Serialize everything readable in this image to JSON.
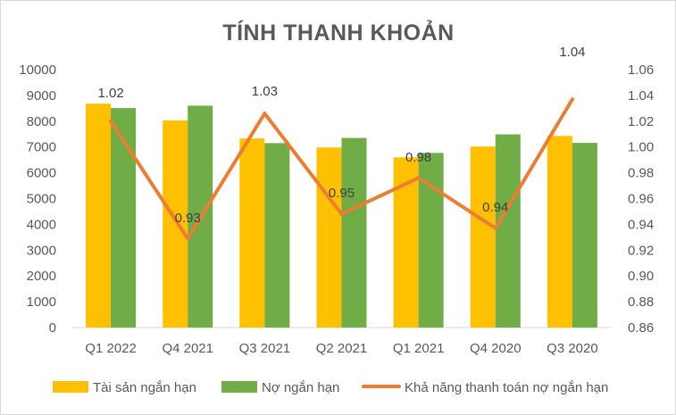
{
  "chart_data": {
    "type": "bar",
    "title": "TÍNH THANH KHOẢN",
    "categories": [
      "Q1 2022",
      "Q4 2021",
      "Q3 2021",
      "Q2 2021",
      "Q1 2021",
      "Q4 2020",
      "Q3 2020"
    ],
    "series": [
      {
        "name": "Tài sản ngắn hạn",
        "type": "bar",
        "axis": "left",
        "color": "#FFC000",
        "values": [
          8680,
          8030,
          7330,
          6980,
          6600,
          7020,
          7430
        ]
      },
      {
        "name": "Nợ ngắn hạn",
        "type": "bar",
        "axis": "left",
        "color": "#70AD47",
        "values": [
          8510,
          8600,
          7150,
          7350,
          6770,
          7490,
          7160
        ]
      },
      {
        "name": "Khả năng thanh toán nợ ngắn hạn",
        "type": "line",
        "axis": "right",
        "color": "#ED7D31",
        "values": [
          1.02,
          0.929,
          1.026,
          0.948,
          0.976,
          0.937,
          1.037
        ],
        "data_labels": [
          "1.02",
          "0.93",
          "1.03",
          "0.95",
          "0.98",
          "0.94",
          "1.04"
        ]
      }
    ],
    "y_left": {
      "min": 0,
      "max": 10000,
      "step": 1000,
      "ticks": [
        "0",
        "1000",
        "2000",
        "3000",
        "4000",
        "5000",
        "6000",
        "7000",
        "8000",
        "9000",
        "10000"
      ]
    },
    "y_right": {
      "min": 0.86,
      "max": 1.06,
      "step": 0.02,
      "ticks": [
        "0.86",
        "0.88",
        "0.90",
        "0.92",
        "0.94",
        "0.96",
        "0.98",
        "1.00",
        "1.02",
        "1.04",
        "1.06"
      ]
    },
    "grid": false,
    "legend_position": "bottom"
  }
}
